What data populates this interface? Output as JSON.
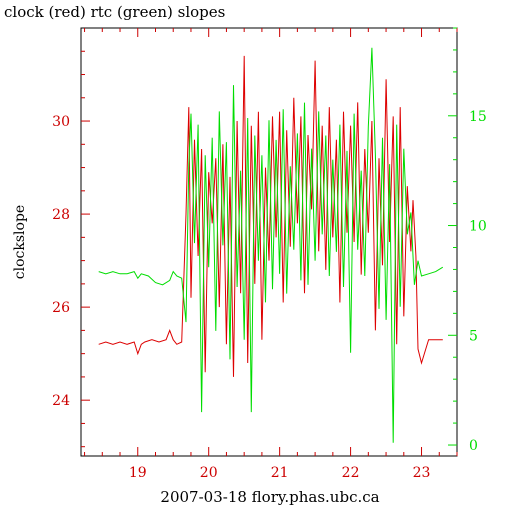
{
  "chart_data": {
    "type": "line",
    "title": "clock (red) rtc (green) slopes",
    "xlabel": "2007-03-18 flory.phas.ubc.ca",
    "ylabel": "clockslope",
    "grid": false,
    "xlim": [
      18.2,
      23.5
    ],
    "ylim_left": [
      22.8,
      32.0
    ],
    "ylim_right": [
      -0.5,
      19.0
    ],
    "x_ticks": [
      19,
      20,
      21,
      22,
      23
    ],
    "y_left_ticks": [
      24,
      26,
      28,
      30
    ],
    "y_right_ticks": [
      0,
      5,
      10,
      15
    ],
    "colors": {
      "frame": "#000000",
      "x_ticks": "#cc0000",
      "left_axis": "#cc0000",
      "right_axis": "#00dd00"
    },
    "series": [
      {
        "name": "clock",
        "color": "#dd0000",
        "axis": "left",
        "x": [
          18.45,
          18.55,
          18.65,
          18.75,
          18.85,
          18.95,
          19.0,
          19.05,
          19.1,
          19.2,
          19.3,
          19.4,
          19.45,
          19.5,
          19.55,
          19.62,
          19.68,
          19.72,
          19.75,
          19.8,
          19.85,
          19.9,
          19.95,
          20.0,
          20.05,
          20.1,
          20.15,
          20.2,
          20.25,
          20.3,
          20.35,
          20.4,
          20.45,
          20.5,
          20.55,
          20.6,
          20.65,
          20.7,
          20.75,
          20.8,
          20.85,
          20.9,
          20.95,
          21.0,
          21.05,
          21.1,
          21.15,
          21.2,
          21.25,
          21.3,
          21.35,
          21.4,
          21.45,
          21.5,
          21.55,
          21.6,
          21.65,
          21.7,
          21.75,
          21.8,
          21.85,
          21.9,
          21.95,
          22.0,
          22.05,
          22.1,
          22.15,
          22.2,
          22.25,
          22.3,
          22.35,
          22.4,
          22.45,
          22.5,
          22.55,
          22.6,
          22.65,
          22.7,
          22.75,
          22.8,
          22.85,
          22.88,
          22.92,
          22.95,
          23.0,
          23.1,
          23.2,
          23.3
        ],
        "y": [
          25.2,
          25.25,
          25.2,
          25.25,
          25.2,
          25.25,
          25.0,
          25.2,
          25.25,
          25.3,
          25.25,
          25.3,
          25.5,
          25.3,
          25.2,
          25.25,
          28.0,
          30.3,
          26.2,
          29.6,
          27.1,
          29.4,
          24.6,
          28.9,
          27.8,
          29.2,
          26.0,
          29.5,
          25.2,
          28.8,
          24.5,
          30.0,
          26.3,
          31.4,
          24.8,
          29.9,
          26.5,
          30.2,
          25.3,
          29.0,
          27.0,
          30.1,
          27.5,
          30.2,
          26.1,
          29.8,
          27.3,
          30.5,
          27.8,
          30.1,
          26.3,
          29.7,
          28.1,
          31.3,
          27.2,
          29.9,
          26.8,
          30.3,
          27.5,
          29.6,
          26.1,
          30.2,
          27.6,
          29.9,
          27.4,
          30.4,
          26.7,
          29.4,
          27.6,
          30.0,
          25.5,
          29.2,
          26.9,
          30.9,
          27.4,
          30.1,
          25.2,
          30.3,
          25.8,
          28.6,
          27.2,
          28.3,
          27.1,
          25.1,
          24.8,
          25.3,
          25.3,
          25.3
        ]
      },
      {
        "name": "rtc",
        "color": "#00dd00",
        "axis": "right",
        "x": [
          18.45,
          18.55,
          18.65,
          18.75,
          18.85,
          18.95,
          19.0,
          19.05,
          19.15,
          19.25,
          19.35,
          19.45,
          19.5,
          19.55,
          19.62,
          19.68,
          19.72,
          19.75,
          19.8,
          19.85,
          19.9,
          19.95,
          20.0,
          20.05,
          20.1,
          20.15,
          20.2,
          20.25,
          20.3,
          20.35,
          20.4,
          20.45,
          20.5,
          20.55,
          20.6,
          20.65,
          20.7,
          20.75,
          20.8,
          20.85,
          20.9,
          20.95,
          21.0,
          21.05,
          21.1,
          21.15,
          21.2,
          21.25,
          21.3,
          21.35,
          21.4,
          21.45,
          21.5,
          21.55,
          21.6,
          21.65,
          21.7,
          21.75,
          21.8,
          21.85,
          21.9,
          21.95,
          22.0,
          22.05,
          22.1,
          22.15,
          22.2,
          22.25,
          22.3,
          22.35,
          22.4,
          22.45,
          22.5,
          22.55,
          22.6,
          22.65,
          22.7,
          22.75,
          22.8,
          22.85,
          22.9,
          22.95,
          23.0,
          23.1,
          23.2,
          23.3
        ],
        "y": [
          7.9,
          7.8,
          7.9,
          7.8,
          7.8,
          7.9,
          7.6,
          7.8,
          7.7,
          7.4,
          7.3,
          7.5,
          7.9,
          7.7,
          7.6,
          5.6,
          12.8,
          15.1,
          9.2,
          14.6,
          1.5,
          13.2,
          8.1,
          14.0,
          5.2,
          15.2,
          9.1,
          13.8,
          3.9,
          16.4,
          7.2,
          12.5,
          4.8,
          14.9,
          1.5,
          14.1,
          8.4,
          13.2,
          6.5,
          14.8,
          7.1,
          13.9,
          7.8,
          15.3,
          6.9,
          12.7,
          8.9,
          14.2,
          7.5,
          15.6,
          7.3,
          13.5,
          8.4,
          15.2,
          9.6,
          14.1,
          7.7,
          13.0,
          8.8,
          14.6,
          7.2,
          13.4,
          4.2,
          15.1,
          8.9,
          12.5,
          7.7,
          14.5,
          18.1,
          13.2,
          6.2,
          14.0,
          5.7,
          12.8,
          0.1,
          14.6,
          6.3,
          13.5,
          9.6,
          10.6,
          7.3,
          8.4,
          7.7,
          7.8,
          7.9,
          8.1
        ]
      }
    ]
  }
}
